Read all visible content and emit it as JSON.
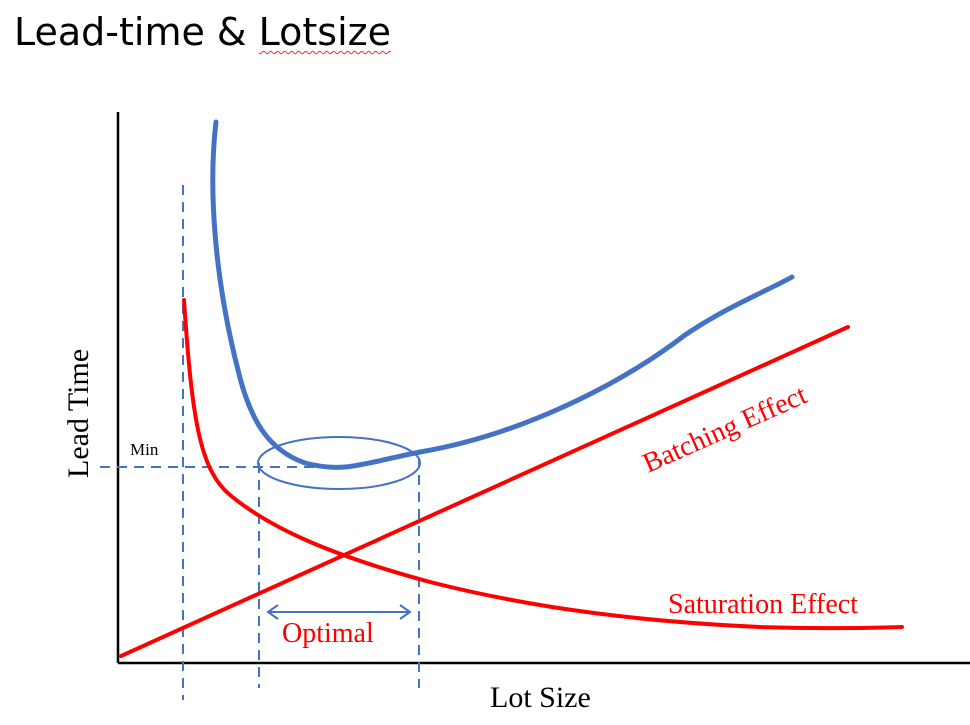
{
  "title": {
    "part1": "Lead-time & ",
    "part2": "Lotsize"
  },
  "axes": {
    "x_label": "Lot Size",
    "y_label": "Lead Time"
  },
  "labels": {
    "min": "Min",
    "optimal": "Optimal",
    "batching_effect": "Batching Effect",
    "saturation_effect": "Saturation Effect"
  },
  "colors": {
    "total_curve": "#4472c4",
    "effect_curves": "#ff0000",
    "guides": "#4472c4",
    "axes": "#000000"
  }
}
